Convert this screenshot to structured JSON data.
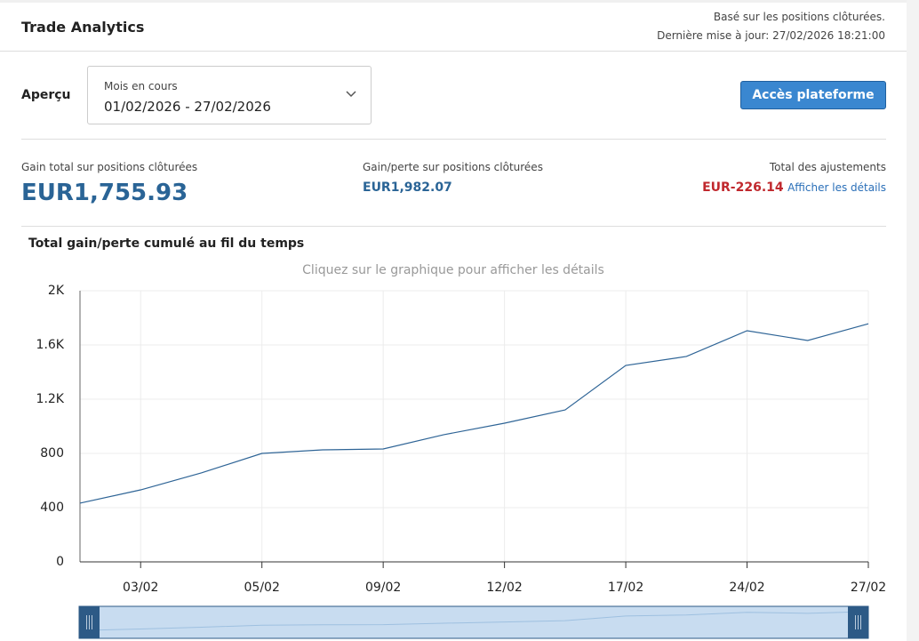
{
  "header": {
    "title": "Trade Analytics",
    "note": "Basé sur les positions clôturées.",
    "updated": "Dernière mise à jour: 27/02/2026 18:21:00"
  },
  "overview": {
    "label": "Aperçu",
    "dropdown_label": "Mois en cours",
    "dropdown_value": "01/02/2026 - 27/02/2026",
    "button": "Accès plateforme"
  },
  "stats": [
    {
      "label": "Gain total sur positions clôturées",
      "value": "EUR1,755.93"
    },
    {
      "label": "Gain/perte sur positions clôturées",
      "value": "EUR1,982.07"
    },
    {
      "label": "Total des ajustements",
      "value": "EUR-226.14",
      "link": "Afficher les détails"
    }
  ],
  "chart_data": {
    "type": "line",
    "title": "Total gain/perte cumulé au fil du temps",
    "subtitle": "Cliquez sur le graphique pour afficher les détails",
    "categories": [
      null,
      "03/02",
      null,
      "05/02",
      null,
      "09/02",
      null,
      "12/02",
      null,
      "17/02",
      null,
      "24/02",
      null,
      "27/02"
    ],
    "values": [
      433,
      531,
      656,
      800,
      826,
      833,
      938,
      1023,
      1121,
      1449,
      1515,
      1705,
      1633,
      1756
    ],
    "color": "#2e6496",
    "ylim": [
      0,
      2000
    ],
    "yticks": [
      0,
      400,
      800,
      {
        "value": 1200,
        "label": "1.2K"
      },
      {
        "value": 1600,
        "label": "1.6K"
      },
      {
        "value": 2000,
        "label": "2K"
      }
    ],
    "grid": true
  }
}
